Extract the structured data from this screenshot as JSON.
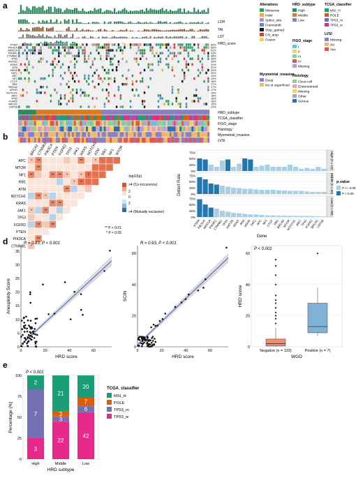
{
  "panel_labels": {
    "a": "a",
    "b": "b",
    "c": "c",
    "d": "d",
    "e": "e"
  },
  "panel_a": {
    "track_labels": [
      "LOH",
      "TAI",
      "LST",
      "HRD_score"
    ],
    "genes": [
      "PTEN",
      "PIK3CA",
      "ARID1A",
      "PIK3R1",
      "CTNNB1",
      "TP53",
      "KMT2D",
      "KRAS",
      "ATM",
      "MSH6",
      "FAT1",
      "APC",
      "NF1",
      "CTCF",
      "RB1",
      "BRCA2",
      "MTOR",
      "NOTCH1",
      "JAK1",
      "TP63",
      "FGFR2",
      "BRCA1",
      "LRP1B"
    ],
    "percents": [
      "80%",
      "65%",
      "51%",
      "43%",
      "36%",
      "33%",
      "25%",
      "22%",
      "22%",
      "20%",
      "20%",
      "19%",
      "19%",
      "18%",
      "17%",
      "17%",
      "17%",
      "16%",
      "16%",
      "16%",
      "16%",
      "15%",
      "14%"
    ],
    "annotation_rows": [
      "HRD_subtype",
      "TCGA_classifier",
      "FIGO_stage",
      "Histology",
      "Myometrial_invasion",
      "LVSI"
    ],
    "legends": [
      {
        "title": "Alterations",
        "items": [
          {
            "label": "Missense",
            "color": "#2ca05a"
          },
          {
            "label": "Indel",
            "color": "#f2a93b"
          },
          {
            "label": "Splice_site",
            "color": "#b58dc4"
          },
          {
            "label": "Frameshift",
            "color": "#4a8fd1"
          },
          {
            "label": "Stop_gained",
            "color": "#1a1a1a"
          },
          {
            "label": "CN_amp",
            "color": "#e23a2d"
          },
          {
            "label": "Fusion",
            "color": "#ead26a"
          }
        ]
      },
      {
        "title": "HRD_subtype",
        "items": [
          {
            "label": "High",
            "color": "#2d8a5c"
          },
          {
            "label": "Middle",
            "color": "#e07a1f"
          },
          {
            "label": "Low",
            "color": "#8b7fc4"
          }
        ]
      },
      {
        "title": "TCGA_classifier",
        "items": [
          {
            "label": "MSI_H",
            "color": "#1b9e77"
          },
          {
            "label": "POLE",
            "color": "#d95f02"
          },
          {
            "label": "TP53_m",
            "color": "#7570b3"
          },
          {
            "label": "TP53_w",
            "color": "#e7298a"
          }
        ]
      },
      {
        "title": "FIGO_stage",
        "items": [
          {
            "label": "I",
            "color": "#66c2d6"
          },
          {
            "label": "II",
            "color": "#f4d35e"
          },
          {
            "label": "III",
            "color": "#8fd18f"
          },
          {
            "label": "IV",
            "color": "#e8534a"
          },
          {
            "label": "Missing",
            "color": "#b79ad6"
          }
        ]
      },
      {
        "title": "Histology",
        "items": [
          {
            "label": "Clear-cell",
            "color": "#8fd18f"
          },
          {
            "label": "Endometrioid",
            "color": "#f49ac2"
          },
          {
            "label": "Missing",
            "color": "#f4d35e"
          },
          {
            "label": "Other",
            "color": "#b79ad6"
          },
          {
            "label": "Serous",
            "color": "#2f6fa8"
          }
        ]
      },
      {
        "title": "Myometrial_invasion",
        "items": [
          {
            "label": "Deep",
            "color": "#8b7fc4"
          },
          {
            "label": "No or superficial",
            "color": "#f2b866"
          }
        ]
      },
      {
        "title": "LVSI",
        "items": [
          {
            "label": "Missing",
            "color": "#8b7fc4"
          },
          {
            "label": "No",
            "color": "#f2b866"
          },
          {
            "label": "Yes",
            "color": "#e8534a"
          }
        ]
      }
    ]
  },
  "panel_b": {
    "col_genes": [
      "BRCA2",
      "CTNNB1",
      "PIK3CA",
      "PTEN",
      "FGFR2",
      "TP53",
      "JAK1",
      "KRAS",
      "NOTCH1",
      "ATM",
      "RB1",
      "NF1",
      "MTOR"
    ],
    "row_genes": [
      "APC",
      "MTOR",
      "NF1",
      "RB1",
      "ATM",
      "NOTCH1",
      "KRAS",
      "JAK1",
      "TP53",
      "FGFR2",
      "PTEN",
      "PIK3CA",
      "CTNNB1"
    ],
    "colorbar_title": "-log10(p)",
    "colorbar_top": ">4 (Co-occurence)",
    "colorbar_ticks": [
      "2",
      "0",
      "2"
    ],
    "colorbar_bottom": ">4 (Mutually exclusive)",
    "sig_note_1": "** P < 0.01",
    "sig_note_2": "* P < 0.05"
  },
  "panel_c": {
    "ylabel": "Detect Rate",
    "xlabel": "Gene",
    "legend_title": "p.value",
    "legend_items": [
      {
        "label": "P >= 0.05",
        "color": "#a9cfe6"
      },
      {
        "label": "P < 0.05",
        "color": "#1f77b4"
      }
    ],
    "facets": [
      "High (n = 13)",
      "Middle (n = 50)",
      "Low (n = 80)"
    ],
    "yticks": [
      "0%",
      "25%",
      "50%",
      "75%"
    ],
    "genes": [
      "PTEN",
      "PIK3CA",
      "ARID1A",
      "PIK3R1",
      "CTNNB1",
      "TP53",
      "KMT2D",
      "KRAS",
      "ATM",
      "MSH6",
      "FAT1",
      "APC",
      "NF1",
      "CTCF",
      "RB1",
      "BRCA2",
      "MTOR",
      "NOTCH1",
      "JAK1",
      "TP63",
      "FGFR2",
      "BRCA1",
      "LRP1B"
    ]
  },
  "panel_d": {
    "plot1": {
      "title": "R = 0.83, P < 0.001",
      "xlabel": "HRD score",
      "ylabel": "Aneuploidy Score",
      "xticks": [
        "0",
        "20",
        "40",
        "60"
      ],
      "yticks": [
        "0",
        "5",
        "10",
        "15",
        "20",
        "25",
        "30",
        "35"
      ]
    },
    "plot2": {
      "title": "R = 0.93, P < 0.001",
      "xlabel": "HRD score",
      "ylabel": "SCIN",
      "xticks": [
        "0",
        "20",
        "40",
        "60"
      ],
      "yticks": [
        "0",
        "20",
        "40",
        "60"
      ]
    },
    "plot3": {
      "title": "P < 0.001",
      "xlabel": "WGD",
      "ylabel": "HRD score",
      "yticks": [
        "0",
        "20",
        "40",
        "60"
      ],
      "cat1": "Negative (n = 133)",
      "cat2": "Positive (n = 7)"
    }
  },
  "panel_e": {
    "title": "P < 0.001",
    "ylabel": "Percentage (%)",
    "xlabel": "HRD subtype",
    "yticks": [
      "0",
      "25",
      "50",
      "75",
      "100"
    ],
    "legend_title": "TCGA_classifier",
    "chart_data": {
      "type": "bar",
      "categories": [
        "High",
        "Middle",
        "Low"
      ],
      "series": [
        {
          "name": "TP53_w",
          "color": "#e7298a",
          "counts": [
            3,
            22,
            42
          ]
        },
        {
          "name": "TP53_m",
          "color": "#7570b3",
          "counts": [
            7,
            3,
            6
          ]
        },
        {
          "name": "POLE",
          "color": "#d95f02",
          "counts": [
            0,
            3,
            7
          ]
        },
        {
          "name": "MSI_H",
          "color": "#1b9e77",
          "counts": [
            2,
            21,
            20
          ]
        }
      ],
      "ylim": [
        0,
        100
      ]
    }
  }
}
